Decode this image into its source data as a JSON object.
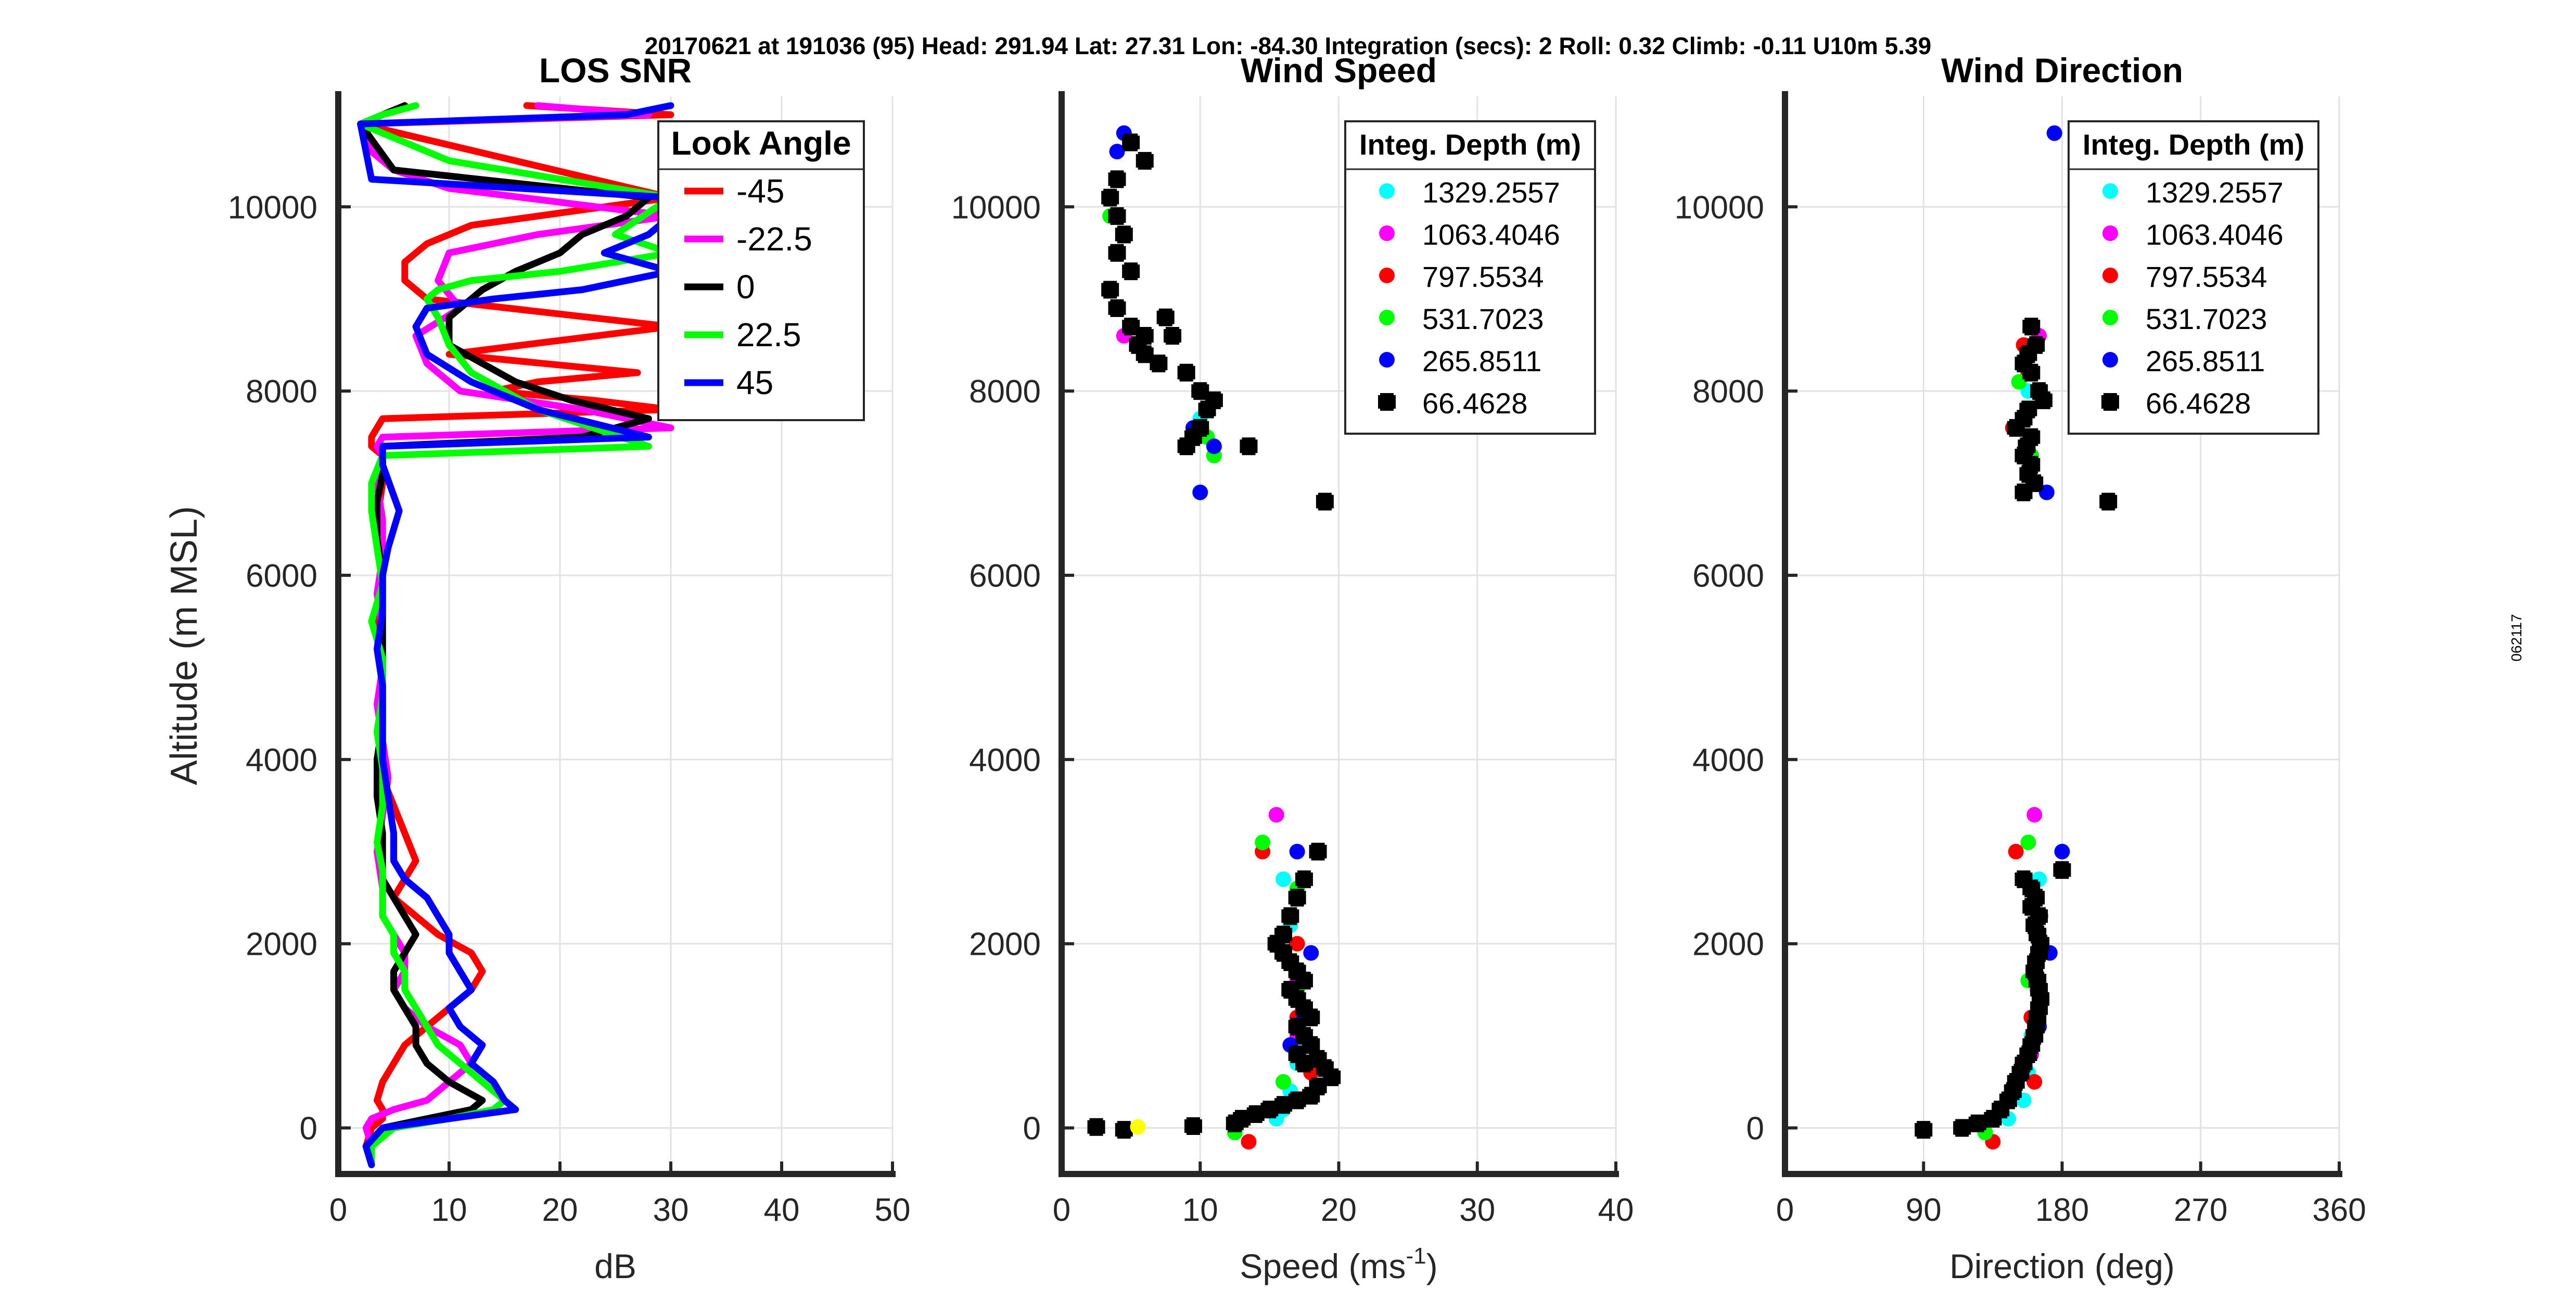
{
  "header": "20170621 at 191036 (95)  Head: 291.94  Lat: 27.31  Lon: -84.30  Integration (secs): 2  Roll: 0.32  Climb: -0.11  U10m 5.39",
  "side_code": "062117",
  "chart_data": [
    {
      "id": "snr",
      "type": "line",
      "title": "LOS SNR",
      "xlabel": "dB",
      "ylabel": "Altitude (m MSL)",
      "xlim": [
        0,
        50
      ],
      "ylim": [
        -500,
        11200
      ],
      "xticks": [
        0,
        10,
        20,
        30,
        40,
        50
      ],
      "yticks": [
        0,
        2000,
        4000,
        6000,
        8000,
        10000
      ],
      "grid": true,
      "legend": {
        "title": "Look Angle",
        "position": "top-right"
      },
      "series": [
        {
          "name": "-45",
          "color": "#ff0000",
          "x": [
            3,
            2.5,
            3,
            4,
            4,
            3.5,
            4,
            5,
            6,
            8,
            10,
            12,
            13,
            12,
            9,
            7,
            5,
            6,
            7,
            6,
            5,
            4,
            4,
            4,
            4,
            3.5,
            4,
            4,
            3.5,
            4,
            4,
            3,
            3,
            3.5,
            4,
            30,
            23,
            14,
            18,
            27,
            10,
            30,
            8,
            6,
            6,
            8,
            12,
            30,
            2,
            30,
            17
          ],
          "y": [
            -400,
            -200,
            0,
            100,
            200,
            300,
            500,
            700,
            900,
            1100,
            1300,
            1500,
            1700,
            1900,
            2100,
            2300,
            2500,
            2700,
            2900,
            3200,
            3500,
            3800,
            4200,
            4600,
            5000,
            5400,
            5800,
            6200,
            6600,
            7000,
            7300,
            7400,
            7500,
            7600,
            7700,
            7800,
            7900,
            8000,
            8100,
            8200,
            8400,
            8700,
            9000,
            9200,
            9400,
            9600,
            9800,
            10100,
            10900,
            11000,
            11100
          ]
        },
        {
          "name": "-22.5",
          "color": "#ff00ff",
          "x": [
            3,
            3,
            2.5,
            3,
            5,
            8,
            10,
            12,
            11,
            8,
            6,
            5,
            6,
            6,
            5,
            4,
            4,
            3.5,
            4,
            4.5,
            4,
            3.5,
            4,
            4,
            3.5,
            4,
            4,
            3.5,
            4,
            4,
            3.5,
            4,
            30,
            22,
            11,
            8,
            7,
            11,
            9,
            10,
            18,
            30,
            10,
            5,
            3,
            2,
            28,
            18
          ],
          "y": [
            -400,
            -200,
            0,
            100,
            200,
            300,
            500,
            700,
            900,
            1100,
            1300,
            1500,
            1700,
            1900,
            2100,
            2300,
            2600,
            3000,
            3400,
            3800,
            4200,
            4600,
            5000,
            5400,
            5800,
            6200,
            6600,
            7000,
            7200,
            7300,
            7400,
            7500,
            7600,
            7800,
            8000,
            8300,
            8600,
            8900,
            9200,
            9500,
            9700,
            9900,
            10200,
            10400,
            10600,
            10900,
            11000,
            11100
          ]
        },
        {
          "name": "0",
          "color": "#000000",
          "x": [
            3,
            2.5,
            4,
            8,
            12,
            13,
            10,
            8,
            7,
            7,
            6,
            5,
            5,
            6,
            7,
            6,
            5,
            4,
            4,
            4,
            3.5,
            3.5,
            4,
            4,
            4,
            4,
            4,
            3.5,
            3.5,
            4,
            4,
            4,
            22,
            28,
            21,
            16,
            13,
            10,
            10,
            13,
            16,
            20,
            22,
            26,
            28,
            5,
            2,
            4,
            6
          ],
          "y": [
            -400,
            -200,
            0,
            100,
            200,
            300,
            500,
            700,
            900,
            1100,
            1300,
            1500,
            1700,
            1900,
            2100,
            2300,
            2500,
            2700,
            2900,
            3200,
            3600,
            4000,
            4400,
            4800,
            5200,
            5600,
            6000,
            6400,
            6800,
            7100,
            7300,
            7400,
            7500,
            7700,
            7900,
            8100,
            8300,
            8500,
            8800,
            9100,
            9300,
            9500,
            9700,
            9900,
            10100,
            10400,
            10900,
            11000,
            11100
          ]
        },
        {
          "name": "22.5",
          "color": "#00ff00",
          "x": [
            3,
            3,
            5,
            10,
            14,
            15,
            13,
            11,
            9,
            8,
            7,
            6,
            6,
            5,
            5,
            4,
            4,
            4,
            3.5,
            4,
            4,
            3.5,
            4,
            4,
            3,
            4,
            3.5,
            3,
            3,
            4,
            28,
            18,
            12,
            10,
            9,
            8,
            9,
            12,
            20,
            30,
            25,
            30,
            10,
            2,
            4,
            7
          ],
          "y": [
            -400,
            -200,
            0,
            100,
            200,
            300,
            500,
            700,
            900,
            1100,
            1300,
            1500,
            1700,
            1900,
            2100,
            2300,
            2500,
            2800,
            3100,
            3500,
            3900,
            4300,
            4700,
            5100,
            5500,
            5900,
            6300,
            6700,
            7000,
            7300,
            7400,
            7800,
            8200,
            8500,
            8800,
            9000,
            9100,
            9200,
            9300,
            9500,
            9700,
            10100,
            10500,
            10900,
            11000,
            11100
          ]
        },
        {
          "name": "45",
          "color": "#0000ff",
          "x": [
            3,
            2.5,
            4,
            10,
            16,
            15,
            14,
            12,
            13,
            11,
            10,
            12,
            11,
            10,
            10,
            9,
            8,
            6,
            5,
            5,
            4.5,
            4,
            4,
            4,
            3.5,
            4,
            4,
            4.5,
            5,
            5.5,
            4,
            4,
            28,
            18,
            12,
            8,
            7,
            8,
            14,
            22,
            30,
            24,
            28,
            30,
            30,
            3,
            2,
            26,
            30
          ],
          "y": [
            -400,
            -200,
            0,
            100,
            200,
            300,
            500,
            700,
            900,
            1100,
            1300,
            1500,
            1700,
            1900,
            2100,
            2300,
            2500,
            2700,
            2900,
            3200,
            3600,
            4000,
            4400,
            4800,
            5200,
            5600,
            6000,
            6300,
            6500,
            6700,
            7200,
            7400,
            7500,
            7800,
            8100,
            8400,
            8700,
            8900,
            9000,
            9100,
            9300,
            9500,
            9700,
            9900,
            10100,
            10300,
            10900,
            11000,
            11100
          ]
        }
      ]
    },
    {
      "id": "speed",
      "type": "scatter",
      "title": "Wind Speed",
      "xlabel": "Speed (ms",
      "xlabel_sup": "-1",
      "xlabel_end": ")",
      "xlim": [
        0,
        40
      ],
      "ylim": [
        -500,
        11200
      ],
      "xticks": [
        0,
        10,
        20,
        30,
        40
      ],
      "yticks": [
        0,
        2000,
        4000,
        6000,
        8000,
        10000
      ],
      "grid": true,
      "legend": {
        "title": "Integ. Depth (m)",
        "position": "top-right"
      },
      "series": [
        {
          "name": "1329.2557",
          "color": "#00ffff",
          "marker": "circle",
          "x": [
            16,
            16.5,
            17,
            17.5,
            17,
            16.5,
            16,
            15.5,
            10
          ],
          "y": [
            2700,
            2200,
            1700,
            1200,
            700,
            400,
            200,
            100,
            7700
          ]
        },
        {
          "name": "1063.4046",
          "color": "#ff00ff",
          "marker": "circle",
          "x": [
            15.5,
            16.5,
            17,
            17,
            16,
            4.5
          ],
          "y": [
            3400,
            2300,
            1600,
            1000,
            500,
            8600
          ]
        },
        {
          "name": "797.5534",
          "color": "#ff0000",
          "marker": "circle",
          "x": [
            14.5,
            13.5,
            17,
            18,
            17,
            10
          ],
          "y": [
            3000,
            -150,
            2000,
            600,
            1200,
            7600
          ]
        },
        {
          "name": "531.7023",
          "color": "#00ff00",
          "marker": "circle",
          "x": [
            14.5,
            12.5,
            17,
            17,
            16,
            10.5,
            3.5,
            11
          ],
          "y": [
            3100,
            -50,
            2600,
            1500,
            500,
            7500,
            9900,
            7300
          ]
        },
        {
          "name": "265.8511",
          "color": "#0000ff",
          "marker": "circle",
          "x": [
            4.5,
            4,
            5,
            7,
            9.5,
            11,
            10,
            17,
            18,
            17.5,
            16.5
          ],
          "y": [
            10800,
            10600,
            9300,
            8300,
            7600,
            7400,
            6900,
            3000,
            1900,
            1200,
            900
          ]
        },
        {
          "name": "66.4628",
          "color": "#000000",
          "marker": "cross",
          "x": [
            5,
            6,
            4,
            3.5,
            4,
            4.5,
            4,
            5,
            3.5,
            4,
            5,
            5.5,
            6,
            7,
            6,
            7.5,
            8,
            9,
            10,
            10.5,
            11,
            10,
            9.5,
            9,
            13.5,
            19,
            18.5,
            17.5,
            17,
            16.5,
            16,
            15.5,
            16,
            16.5,
            17,
            17.5,
            16.5,
            17,
            17.5,
            18,
            17,
            17.5,
            18,
            17,
            17.5,
            18.5,
            19,
            19.5,
            18.5,
            18,
            17,
            16,
            15,
            14,
            13,
            12.5,
            4.5,
            9.5,
            2.5
          ],
          "y": [
            10700,
            10500,
            10300,
            10100,
            9900,
            9700,
            9500,
            9300,
            9100,
            8900,
            8700,
            8500,
            8400,
            8300,
            8600,
            8800,
            8600,
            8200,
            8000,
            7800,
            7900,
            7600,
            7500,
            7400,
            7400,
            6800,
            3000,
            2700,
            2500,
            2300,
            2100,
            2000,
            1900,
            1800,
            1700,
            1600,
            1500,
            1400,
            1300,
            1200,
            1100,
            1000,
            900,
            800,
            700,
            750,
            650,
            550,
            450,
            350,
            300,
            250,
            200,
            150,
            100,
            50,
            -20,
            20,
            10
          ]
        },
        {
          "name": "",
          "color": "#ffff00",
          "marker": "circle",
          "in_legend": false,
          "x": [
            5.5
          ],
          "y": [
            10
          ]
        }
      ]
    },
    {
      "id": "direction",
      "type": "scatter",
      "title": "Wind Direction",
      "xlabel": "Direction (deg)",
      "xlim": [
        0,
        360
      ],
      "ylim": [
        -500,
        11200
      ],
      "xticks": [
        0,
        90,
        180,
        270,
        360
      ],
      "yticks": [
        0,
        2000,
        4000,
        6000,
        8000,
        10000
      ],
      "grid": true,
      "legend": {
        "title": "Integ. Depth (m)",
        "position": "top-right"
      },
      "series": [
        {
          "name": "1329.2557",
          "color": "#00ffff",
          "marker": "circle",
          "x": [
            165,
            162,
            163,
            160,
            158,
            155,
            145,
            158
          ],
          "y": [
            2700,
            2200,
            1600,
            1000,
            600,
            300,
            100,
            8000
          ]
        },
        {
          "name": "1063.4046",
          "color": "#ff00ff",
          "marker": "circle",
          "x": [
            162,
            166,
            164,
            160,
            165
          ],
          "y": [
            3400,
            2300,
            1500,
            800,
            8600
          ]
        },
        {
          "name": "797.5534",
          "color": "#ff0000",
          "marker": "circle",
          "x": [
            150,
            135,
            155,
            160,
            162,
            155,
            148,
            158
          ],
          "y": [
            3000,
            -150,
            6900,
            1200,
            500,
            8500,
            7600,
            8200
          ]
        },
        {
          "name": "531.7023",
          "color": "#00ff00",
          "marker": "circle",
          "x": [
            158,
            130,
            160,
            158,
            160,
            152
          ],
          "y": [
            3100,
            -50,
            2600,
            1600,
            7300,
            8100
          ]
        },
        {
          "name": "265.8511",
          "color": "#0000ff",
          "marker": "circle",
          "x": [
            175,
            170,
            180,
            172,
            165,
            162
          ],
          "y": [
            10800,
            6900,
            3000,
            1900,
            1100,
            8500
          ]
        },
        {
          "name": "66.4628",
          "color": "#000000",
          "marker": "cross",
          "x": [
            160,
            163,
            158,
            155,
            160,
            165,
            168,
            158,
            155,
            150,
            160,
            157,
            155,
            160,
            158,
            162,
            155,
            210,
            180,
            155,
            160,
            163,
            160,
            165,
            162,
            164,
            166,
            165,
            163,
            162,
            164,
            165,
            166,
            165,
            164,
            163,
            162,
            160,
            158,
            155,
            153,
            150,
            148,
            145,
            140,
            135,
            125,
            115,
            90
          ],
          "y": [
            8700,
            8500,
            8400,
            8300,
            8200,
            8000,
            7900,
            7800,
            7700,
            7600,
            7500,
            7400,
            7300,
            7200,
            7100,
            7000,
            6900,
            6800,
            2800,
            2700,
            2600,
            2500,
            2400,
            2300,
            2200,
            2100,
            2000,
            1900,
            1800,
            1700,
            1600,
            1500,
            1400,
            1300,
            1200,
            1100,
            1000,
            900,
            800,
            700,
            600,
            500,
            400,
            300,
            200,
            100,
            50,
            0,
            -20
          ]
        }
      ]
    }
  ]
}
